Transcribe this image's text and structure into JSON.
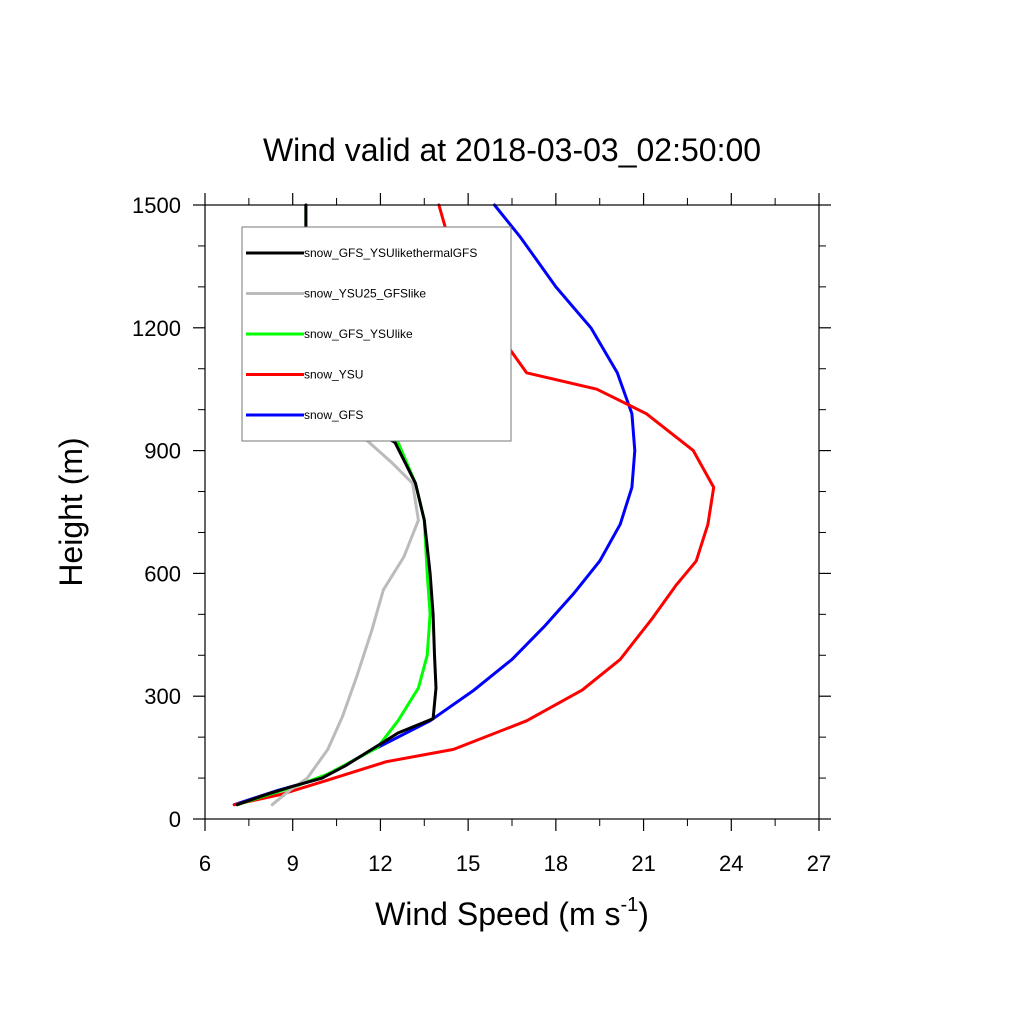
{
  "chart_data": {
    "type": "line",
    "title": "Wind valid at 2018-03-03_02:50:00",
    "xlabel": "Wind Speed (m s",
    "xlabel_sup": "-1",
    "xlabel_close": ")",
    "ylabel": "Height (m)",
    "xlim": [
      6,
      27
    ],
    "ylim": [
      0,
      1500
    ],
    "xticks": [
      "6",
      "9",
      "12",
      "15",
      "18",
      "21",
      "24",
      "27"
    ],
    "yticks": [
      "0",
      "300",
      "600",
      "900",
      "1200",
      "1500"
    ],
    "legend_position": "top-left",
    "series": [
      {
        "name": "snow_GFS_YSUlikethermalGFS",
        "color": "#000000",
        "points": [
          [
            7.1,
            35
          ],
          [
            8.1,
            60
          ],
          [
            9.0,
            80
          ],
          [
            10.0,
            100
          ],
          [
            10.8,
            130
          ],
          [
            11.7,
            170
          ],
          [
            12.6,
            210
          ],
          [
            13.8,
            245
          ],
          [
            13.9,
            320
          ],
          [
            13.85,
            400
          ],
          [
            13.8,
            500
          ],
          [
            13.7,
            600
          ],
          [
            13.5,
            730
          ],
          [
            13.2,
            820
          ],
          [
            12.5,
            920
          ],
          [
            11.0,
            980
          ],
          [
            10.1,
            1010
          ],
          [
            9.6,
            1110
          ],
          [
            9.5,
            1200
          ],
          [
            9.5,
            1300
          ],
          [
            9.45,
            1400
          ],
          [
            9.45,
            1500
          ]
        ]
      },
      {
        "name": "snow_YSU25_GFSlike",
        "color": "#bbbbbb",
        "points": [
          [
            8.3,
            35
          ],
          [
            8.9,
            70
          ],
          [
            9.5,
            100
          ],
          [
            10.2,
            170
          ],
          [
            10.7,
            250
          ],
          [
            11.2,
            350
          ],
          [
            11.7,
            460
          ],
          [
            12.1,
            560
          ],
          [
            12.8,
            640
          ],
          [
            13.3,
            730
          ],
          [
            13.1,
            820
          ],
          [
            12.4,
            870
          ],
          [
            11.3,
            940
          ],
          [
            10.6,
            980
          ],
          [
            9.9,
            1030
          ],
          [
            9.7,
            1110
          ],
          [
            9.55,
            1200
          ],
          [
            9.5,
            1300
          ],
          [
            9.45,
            1400
          ],
          [
            9.45,
            1500
          ]
        ]
      },
      {
        "name": "snow_GFS_YSUlike",
        "color": "#00ff00",
        "points": [
          [
            7.1,
            35
          ],
          [
            8.2,
            60
          ],
          [
            9.1,
            80
          ],
          [
            10.2,
            110
          ],
          [
            11.0,
            140
          ],
          [
            11.9,
            175
          ],
          [
            12.6,
            240
          ],
          [
            13.3,
            320
          ],
          [
            13.6,
            400
          ],
          [
            13.7,
            500
          ],
          [
            13.6,
            600
          ],
          [
            13.5,
            730
          ],
          [
            13.2,
            820
          ],
          [
            12.6,
            920
          ],
          [
            11.0,
            980
          ],
          [
            10.1,
            1010
          ],
          [
            9.6,
            1110
          ],
          [
            9.5,
            1200
          ],
          [
            9.5,
            1300
          ],
          [
            9.45,
            1400
          ],
          [
            9.45,
            1500
          ]
        ]
      },
      {
        "name": "snow_YSU",
        "color": "#ff0000",
        "points": [
          [
            7.0,
            35
          ],
          [
            8.6,
            60
          ],
          [
            10.2,
            95
          ],
          [
            12.2,
            140
          ],
          [
            14.5,
            170
          ],
          [
            17.0,
            240
          ],
          [
            18.9,
            315
          ],
          [
            20.2,
            390
          ],
          [
            21.3,
            490
          ],
          [
            22.1,
            570
          ],
          [
            22.8,
            630
          ],
          [
            23.2,
            720
          ],
          [
            23.4,
            810
          ],
          [
            22.7,
            900
          ],
          [
            21.1,
            990
          ],
          [
            19.4,
            1050
          ],
          [
            17.0,
            1090
          ],
          [
            16.4,
            1150
          ],
          [
            15.7,
            1220
          ],
          [
            15.0,
            1300
          ],
          [
            14.4,
            1400
          ],
          [
            14.0,
            1500
          ]
        ]
      },
      {
        "name": "snow_GFS",
        "color": "#0000ff",
        "points": [
          [
            7.0,
            35
          ],
          [
            8.5,
            70
          ],
          [
            10.0,
            100
          ],
          [
            11.5,
            160
          ],
          [
            13.7,
            240
          ],
          [
            15.2,
            315
          ],
          [
            16.5,
            390
          ],
          [
            17.6,
            470
          ],
          [
            18.6,
            550
          ],
          [
            19.5,
            630
          ],
          [
            20.2,
            720
          ],
          [
            20.6,
            810
          ],
          [
            20.7,
            900
          ],
          [
            20.6,
            990
          ],
          [
            20.1,
            1090
          ],
          [
            19.2,
            1200
          ],
          [
            18.0,
            1300
          ],
          [
            16.8,
            1420
          ],
          [
            15.9,
            1500
          ]
        ]
      }
    ]
  }
}
